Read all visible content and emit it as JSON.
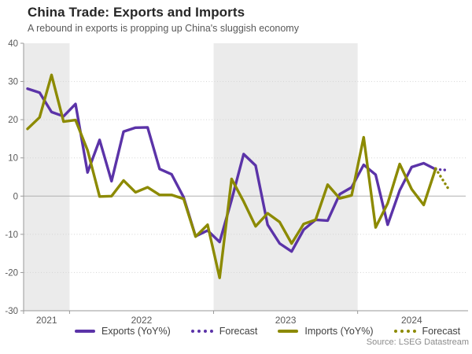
{
  "header": {
    "title": "China Trade: Exports and Imports",
    "subtitle": "A rebound in exports is propping up China's sluggish economy"
  },
  "source": "Source: LSEG Datastream",
  "colors": {
    "exports": "#5b33a8",
    "imports": "#8c8a00",
    "band": "#ebebeb",
    "gridline": "#d4d4d4",
    "zero_line": "#b0b0b0",
    "axis": "#999999",
    "tick_text": "#595959"
  },
  "legend": {
    "items": [
      {
        "label": "Exports (YoY%)",
        "style": "solid",
        "color": "#5b33a8"
      },
      {
        "label": "Forecast",
        "style": "dotted",
        "color": "#5b33a8"
      },
      {
        "label": "Imports (YoY%)",
        "style": "solid",
        "color": "#8c8a00"
      },
      {
        "label": "Forecast",
        "style": "dotted",
        "color": "#8c8a00"
      }
    ]
  },
  "chart_data": {
    "type": "line",
    "title": "China Trade: Exports and Imports",
    "x_start": "2021-09 (monthly)",
    "x_year_labels": [
      "2021",
      "2022",
      "2023",
      "2024"
    ],
    "shaded_years": [
      "2021",
      "2023"
    ],
    "january_point_indices": [
      4,
      16,
      28
    ],
    "ylim": [
      -30,
      40
    ],
    "yticks": [
      40,
      30,
      20,
      10,
      0,
      -10,
      -20,
      -30
    ],
    "grid": "dotted horizontal, solid zero line, alternating year bands",
    "legend_position": "bottom",
    "series": [
      {
        "name": "Exports (YoY%)",
        "color": "#5b33a8",
        "values": [
          28.1,
          27.1,
          22.0,
          20.9,
          24.1,
          6.2,
          14.7,
          3.9,
          16.9,
          17.9,
          18.0,
          7.1,
          5.7,
          -0.3,
          -10.5,
          -9.0,
          -12.0,
          -1.0,
          11.0,
          8.0,
          -7.5,
          -12.4,
          -14.5,
          -8.8,
          -6.2,
          -6.4,
          0.5,
          2.3,
          8.2,
          5.6,
          -7.5,
          1.5,
          7.6,
          8.6,
          7.0
        ],
        "forecast_values": [
          6.8
        ]
      },
      {
        "name": "Imports (YoY%)",
        "color": "#8c8a00",
        "values": [
          17.6,
          20.6,
          31.7,
          19.5,
          19.9,
          12.0,
          -0.1,
          0.0,
          4.1,
          1.0,
          2.3,
          0.3,
          0.3,
          -0.7,
          -10.6,
          -7.5,
          -21.4,
          4.5,
          -1.4,
          -7.9,
          -4.5,
          -6.8,
          -12.4,
          -7.3,
          -6.2,
          3.0,
          -0.6,
          0.2,
          15.4,
          -8.2,
          -1.9,
          8.4,
          1.8,
          -2.3,
          7.2
        ],
        "forecast_values": [
          2.2
        ]
      }
    ]
  }
}
